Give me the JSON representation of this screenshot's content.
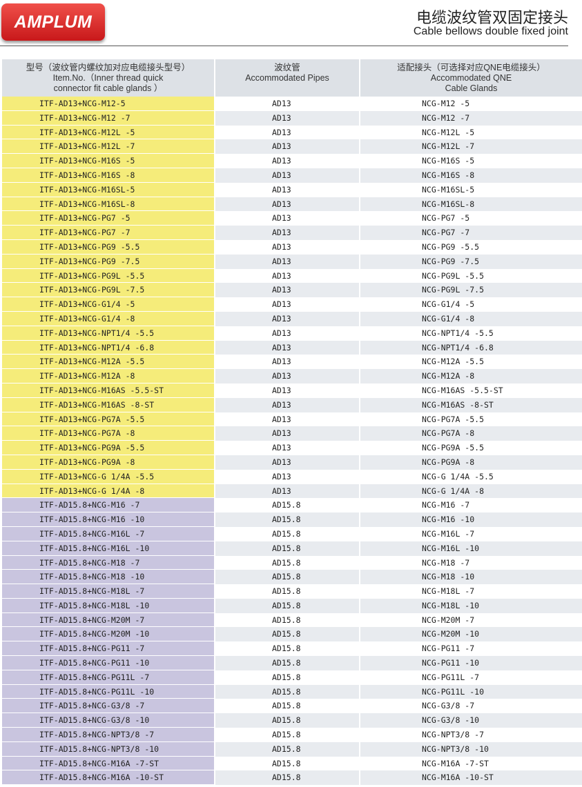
{
  "logo": "AMPLUM",
  "title_cn": "电缆波纹管双固定接头",
  "title_en": "Cable bellows double fixed joint",
  "headers": [
    {
      "cn": "型号（波纹管内螺纹加对应电缆接头型号）",
      "en": "Item.No.（Inner thread quick connector fit cable glands ）"
    },
    {
      "cn": "波纹管",
      "en": "Accommodated Pipes"
    },
    {
      "cn": "适配接头（可选择对应QNE电缆接头）",
      "en": "Accommodated QNE Cable Glands"
    }
  ],
  "colors": {
    "ad13_group": "#f5ec7a",
    "ad15_group": "#c9c5df",
    "header": "#dde1e6"
  },
  "rows": [
    [
      "ITF-AD13+NCG-M12-5",
      "AD13",
      "NCG-M12 -5"
    ],
    [
      "ITF-AD13+NCG-M12 -7",
      "AD13",
      "NCG-M12 -7"
    ],
    [
      "ITF-AD13+NCG-M12L -5",
      "AD13",
      "NCG-M12L -5"
    ],
    [
      "ITF-AD13+NCG-M12L -7",
      "AD13",
      "NCG-M12L -7"
    ],
    [
      "ITF-AD13+NCG-M16S -5",
      "AD13",
      "NCG-M16S -5"
    ],
    [
      "ITF-AD13+NCG-M16S -8",
      "AD13",
      "NCG-M16S -8"
    ],
    [
      "ITF-AD13+NCG-M16SL-5",
      "AD13",
      "NCG-M16SL-5"
    ],
    [
      "ITF-AD13+NCG-M16SL-8",
      "AD13",
      "NCG-M16SL-8"
    ],
    [
      "ITF-AD13+NCG-PG7 -5",
      "AD13",
      "NCG-PG7 -5"
    ],
    [
      "ITF-AD13+NCG-PG7 -7",
      "AD13",
      "NCG-PG7 -7"
    ],
    [
      "ITF-AD13+NCG-PG9 -5.5",
      "AD13",
      "NCG-PG9 -5.5"
    ],
    [
      "ITF-AD13+NCG-PG9 -7.5",
      "AD13",
      "NCG-PG9 -7.5"
    ],
    [
      "ITF-AD13+NCG-PG9L -5.5",
      "AD13",
      "NCG-PG9L -5.5"
    ],
    [
      "ITF-AD13+NCG-PG9L -7.5",
      "AD13",
      "NCG-PG9L -7.5"
    ],
    [
      "ITF-AD13+NCG-G1/4 -5",
      "AD13",
      "NCG-G1/4 -5"
    ],
    [
      "ITF-AD13+NCG-G1/4 -8",
      "AD13",
      "NCG-G1/4 -8"
    ],
    [
      "ITF-AD13+NCG-NPT1/4 -5.5",
      "AD13",
      "NCG-NPT1/4 -5.5"
    ],
    [
      "ITF-AD13+NCG-NPT1/4 -6.8",
      "AD13",
      "NCG-NPT1/4 -6.8"
    ],
    [
      "ITF-AD13+NCG-M12A -5.5",
      "AD13",
      "NCG-M12A -5.5"
    ],
    [
      "ITF-AD13+NCG-M12A -8",
      "AD13",
      "NCG-M12A -8"
    ],
    [
      "ITF-AD13+NCG-M16AS -5.5-ST",
      "AD13",
      "NCG-M16AS -5.5-ST"
    ],
    [
      "ITF-AD13+NCG-M16AS -8-ST",
      "AD13",
      "NCG-M16AS -8-ST"
    ],
    [
      "ITF-AD13+NCG-PG7A -5.5",
      "AD13",
      "NCG-PG7A -5.5"
    ],
    [
      "ITF-AD13+NCG-PG7A -8",
      "AD13",
      "NCG-PG7A -8"
    ],
    [
      "ITF-AD13+NCG-PG9A -5.5",
      "AD13",
      "NCG-PG9A -5.5"
    ],
    [
      "ITF-AD13+NCG-PG9A -8",
      "AD13",
      "NCG-PG9A -8"
    ],
    [
      "ITF-AD13+NCG-G 1/4A -5.5",
      "AD13",
      "NCG-G 1/4A -5.5"
    ],
    [
      "ITF-AD13+NCG-G 1/4A -8",
      "AD13",
      "NCG-G 1/4A -8"
    ],
    [
      "ITF-AD15.8+NCG-M16 -7",
      "AD15.8",
      "NCG-M16 -7"
    ],
    [
      "ITF-AD15.8+NCG-M16 -10",
      "AD15.8",
      "NCG-M16 -10"
    ],
    [
      "ITF-AD15.8+NCG-M16L -7",
      "AD15.8",
      "NCG-M16L -7"
    ],
    [
      "ITF-AD15.8+NCG-M16L -10",
      "AD15.8",
      "NCG-M16L -10"
    ],
    [
      "ITF-AD15.8+NCG-M18 -7",
      "AD15.8",
      "NCG-M18 -7"
    ],
    [
      "ITF-AD15.8+NCG-M18 -10",
      "AD15.8",
      "NCG-M18 -10"
    ],
    [
      "ITF-AD15.8+NCG-M18L -7",
      "AD15.8",
      "NCG-M18L -7"
    ],
    [
      "ITF-AD15.8+NCG-M18L -10",
      "AD15.8",
      "NCG-M18L -10"
    ],
    [
      "ITF-AD15.8+NCG-M20M -7",
      "AD15.8",
      "NCG-M20M -7"
    ],
    [
      "ITF-AD15.8+NCG-M20M -10",
      "AD15.8",
      "NCG-M20M -10"
    ],
    [
      "ITF-AD15.8+NCG-PG11 -7",
      "AD15.8",
      "NCG-PG11 -7"
    ],
    [
      "ITF-AD15.8+NCG-PG11 -10",
      "AD15.8",
      "NCG-PG11 -10"
    ],
    [
      "ITF-AD15.8+NCG-PG11L -7",
      "AD15.8",
      "NCG-PG11L -7"
    ],
    [
      "ITF-AD15.8+NCG-PG11L -10",
      "AD15.8",
      "NCG-PG11L -10"
    ],
    [
      "ITF-AD15.8+NCG-G3/8 -7",
      "AD15.8",
      "NCG-G3/8 -7"
    ],
    [
      "ITF-AD15.8+NCG-G3/8 -10",
      "AD15.8",
      "NCG-G3/8 -10"
    ],
    [
      "ITF-AD15.8+NCG-NPT3/8 -7",
      "AD15.8",
      "NCG-NPT3/8 -7"
    ],
    [
      "ITF-AD15.8+NCG-NPT3/8 -10",
      "AD15.8",
      "NCG-NPT3/8 -10"
    ],
    [
      "ITF-AD15.8+NCG-M16A -7-ST",
      "AD15.8",
      "NCG-M16A -7-ST"
    ],
    [
      "ITF-AD15.8+NCG-M16A -10-ST",
      "AD15.8",
      "NCG-M16A -10-ST"
    ]
  ]
}
